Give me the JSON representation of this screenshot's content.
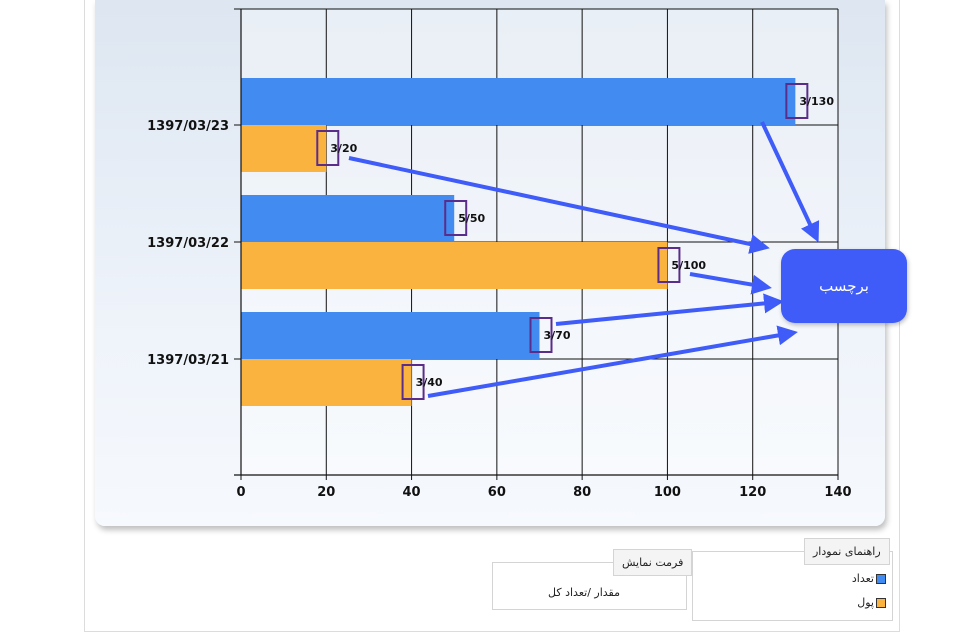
{
  "chart_data": {
    "type": "bar",
    "orientation": "horizontal",
    "categories": [
      "1397/03/23",
      "1397/03/22",
      "1397/03/21"
    ],
    "series": [
      {
        "name": "تعداد",
        "color": "#428bf0",
        "values": [
          130,
          50,
          70
        ],
        "labels": [
          "3/130",
          "5/50",
          "3/70"
        ]
      },
      {
        "name": "پول",
        "color": "#fbb33f",
        "values": [
          20,
          100,
          40
        ],
        "labels": [
          "3/20",
          "5/100",
          "3/40"
        ]
      }
    ],
    "x_ticks": [
      "0",
      "20",
      "40",
      "60",
      "80",
      "100",
      "120",
      "140"
    ],
    "xlim": [
      0,
      140
    ],
    "grid": true
  },
  "annotation": {
    "callout_label": "برچسب",
    "callout_color": "#3f5cf8",
    "highlight_color": "#5b2d8a"
  },
  "legend_panel": {
    "title": "راهنمای نمودار",
    "items": [
      {
        "label": "تعداد",
        "color": "#428bf0"
      },
      {
        "label": "پول",
        "color": "#fbb33f"
      }
    ]
  },
  "format_panel": {
    "title": "فرمت نمایش",
    "value": "مقدار /تعداد کل"
  }
}
